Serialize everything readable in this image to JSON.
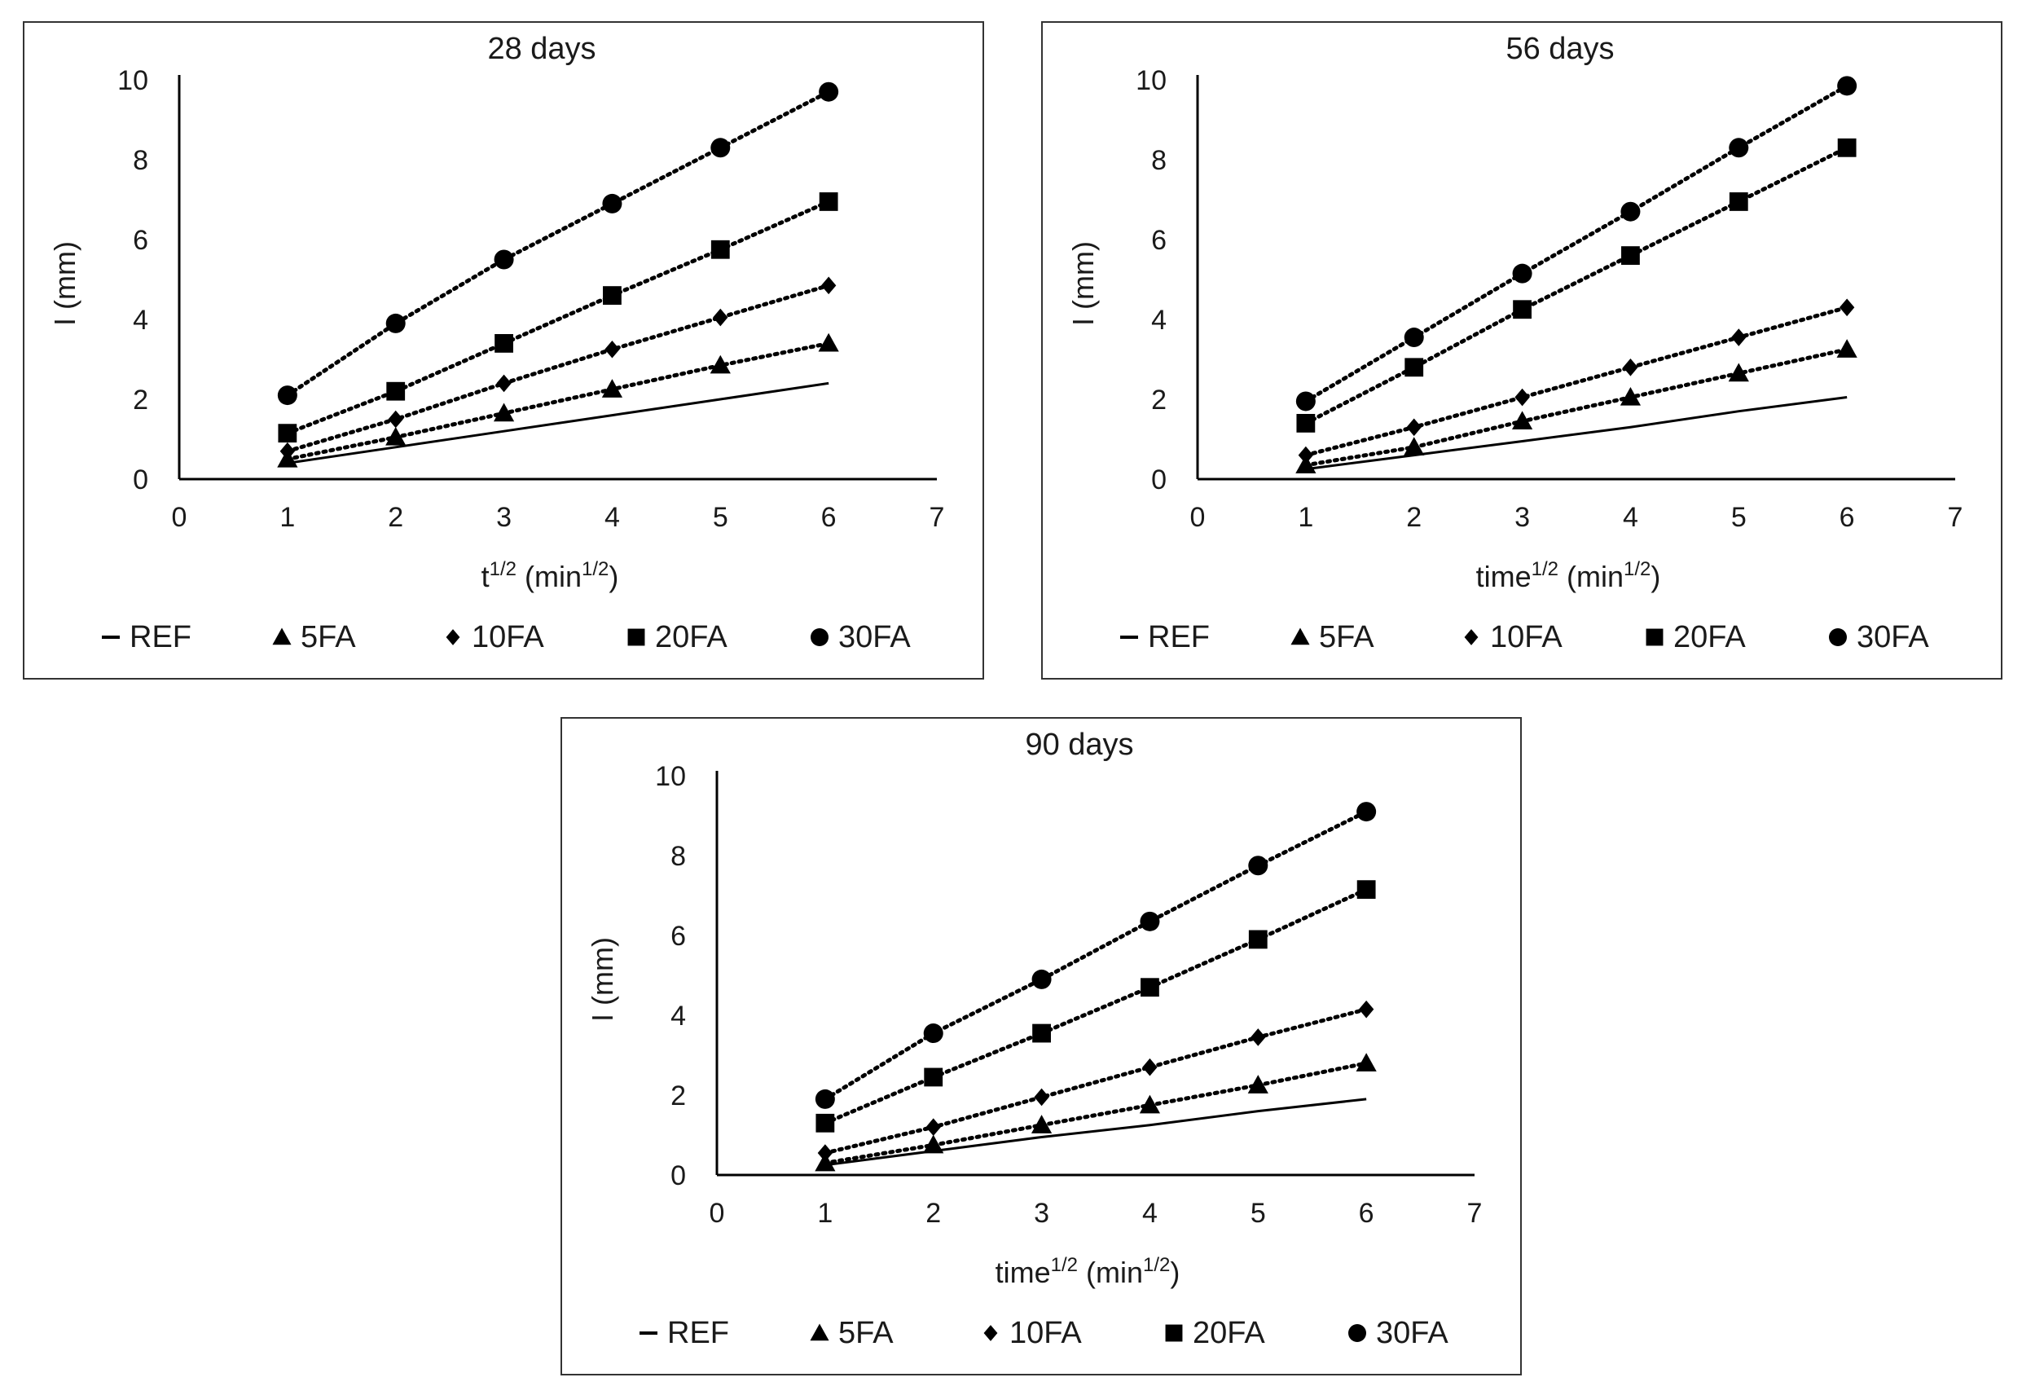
{
  "marker_color": "#000000",
  "chart_data": [
    {
      "type": "line",
      "title": "28 days",
      "xlabel_base": "t",
      "xlabel_sup": "1/2",
      "xlabel_mid": " (min",
      "xlabel_sup2": "1/2",
      "xlabel_end": ")",
      "ylabel": "I (mm)",
      "xlim": [
        0,
        7
      ],
      "ylim": [
        0,
        10
      ],
      "xticks": [
        "0",
        "1",
        "2",
        "3",
        "4",
        "5",
        "6",
        "7"
      ],
      "yticks": [
        "0",
        "2",
        "4",
        "6",
        "8",
        "10"
      ],
      "x": [
        1,
        2,
        3,
        4,
        5,
        6
      ],
      "series": [
        {
          "name": "REF",
          "marker": "none",
          "values": [
            0.4,
            0.8,
            1.2,
            1.6,
            2.0,
            2.4
          ]
        },
        {
          "name": "5FA",
          "marker": "triangle",
          "values": [
            0.5,
            1.05,
            1.65,
            2.25,
            2.85,
            3.4
          ]
        },
        {
          "name": "10FA",
          "marker": "diamond",
          "values": [
            0.7,
            1.5,
            2.4,
            3.25,
            4.05,
            4.85
          ]
        },
        {
          "name": "20FA",
          "marker": "square",
          "values": [
            1.15,
            2.2,
            3.4,
            4.6,
            5.75,
            6.95
          ]
        },
        {
          "name": "30FA",
          "marker": "circle",
          "values": [
            2.1,
            3.9,
            5.5,
            6.9,
            8.3,
            9.7
          ]
        }
      ]
    },
    {
      "type": "line",
      "title": "56 days",
      "xlabel_base": "time",
      "xlabel_sup": "1/2",
      "xlabel_mid": " (min",
      "xlabel_sup2": "1/2",
      "xlabel_end": ")",
      "ylabel": "I (mm)",
      "xlim": [
        0,
        7
      ],
      "ylim": [
        0,
        10
      ],
      "xticks": [
        "0",
        "1",
        "2",
        "3",
        "4",
        "5",
        "6",
        "7"
      ],
      "yticks": [
        "0",
        "2",
        "4",
        "6",
        "8",
        "10"
      ],
      "x": [
        1,
        2,
        3,
        4,
        5,
        6
      ],
      "series": [
        {
          "name": "REF",
          "marker": "none",
          "values": [
            0.25,
            0.6,
            0.95,
            1.3,
            1.7,
            2.05
          ]
        },
        {
          "name": "5FA",
          "marker": "triangle",
          "values": [
            0.35,
            0.8,
            1.45,
            2.05,
            2.65,
            3.25
          ]
        },
        {
          "name": "10FA",
          "marker": "diamond",
          "values": [
            0.6,
            1.3,
            2.05,
            2.8,
            3.55,
            4.3
          ]
        },
        {
          "name": "20FA",
          "marker": "square",
          "values": [
            1.4,
            2.8,
            4.25,
            5.6,
            6.95,
            8.3
          ]
        },
        {
          "name": "30FA",
          "marker": "circle",
          "values": [
            1.95,
            3.55,
            5.15,
            6.7,
            8.3,
            9.85
          ]
        }
      ]
    },
    {
      "type": "line",
      "title": "90 days",
      "xlabel_base": "time",
      "xlabel_sup": "1/2",
      "xlabel_mid": " (min",
      "xlabel_sup2": "1/2",
      "xlabel_end": ")",
      "ylabel": "I (mm)",
      "xlim": [
        0,
        7
      ],
      "ylim": [
        0,
        10
      ],
      "xticks": [
        "0",
        "1",
        "2",
        "3",
        "4",
        "5",
        "6",
        "7"
      ],
      "yticks": [
        "0",
        "2",
        "4",
        "6",
        "8",
        "10"
      ],
      "x": [
        1,
        2,
        3,
        4,
        5,
        6
      ],
      "series": [
        {
          "name": "REF",
          "marker": "none",
          "values": [
            0.25,
            0.6,
            0.95,
            1.25,
            1.6,
            1.9
          ]
        },
        {
          "name": "5FA",
          "marker": "triangle",
          "values": [
            0.3,
            0.75,
            1.25,
            1.75,
            2.25,
            2.8
          ]
        },
        {
          "name": "10FA",
          "marker": "diamond",
          "values": [
            0.55,
            1.2,
            1.95,
            2.7,
            3.45,
            4.15
          ]
        },
        {
          "name": "20FA",
          "marker": "square",
          "values": [
            1.3,
            2.45,
            3.55,
            4.7,
            5.9,
            7.15
          ]
        },
        {
          "name": "30FA",
          "marker": "circle",
          "values": [
            1.9,
            3.55,
            4.9,
            6.35,
            7.75,
            9.1
          ]
        }
      ]
    }
  ]
}
